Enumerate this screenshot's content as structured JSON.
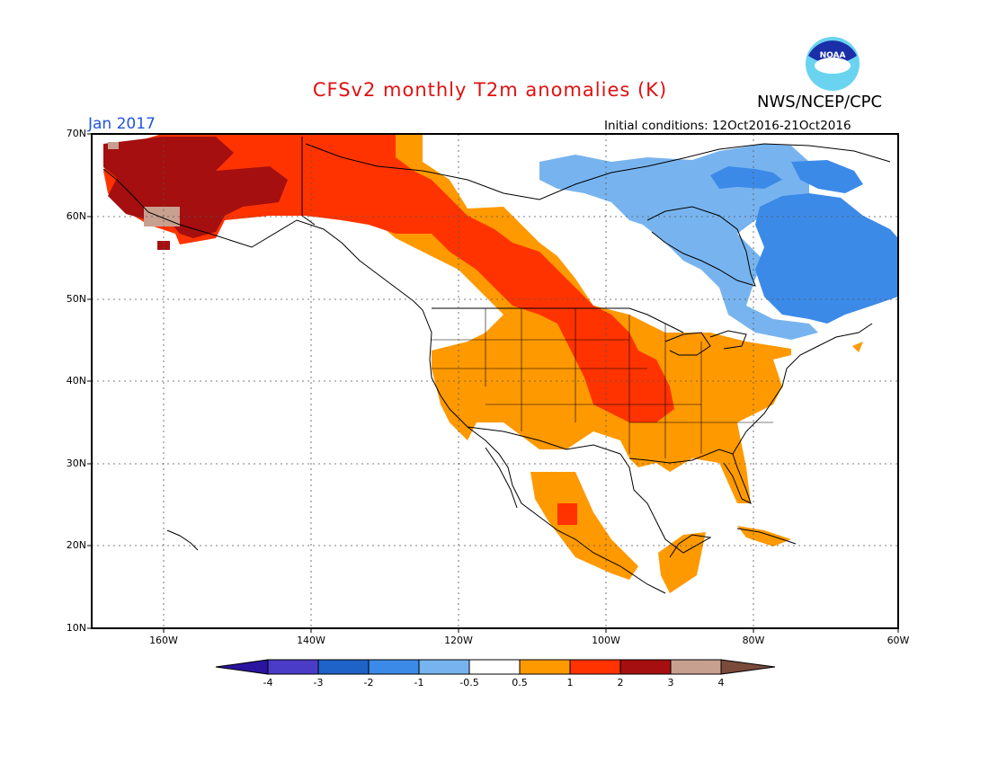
{
  "header": {
    "title": "CFSv2 monthly T2m anomalies (K)",
    "organization": "NWS/NCEP/CPC",
    "valid_month": "Jan 2017",
    "initial_conditions": "Initial conditions: 12Oct2016-21Oct2016",
    "logo_text": "NOAA"
  },
  "map": {
    "projection": "lat-lon",
    "lon_range": [
      -172,
      -60
    ],
    "lat_range": [
      10,
      70
    ],
    "lat_labels": [
      "70N",
      "60N",
      "50N",
      "40N",
      "30N",
      "20N",
      "10N"
    ],
    "lon_labels": [
      "160W",
      "140W",
      "120W",
      "100W",
      "80W",
      "60W"
    ],
    "regions": [
      {
        "name": "Alaska",
        "anomaly_class": "2 to 3",
        "color": "#a50f0f"
      },
      {
        "name": "Yukon / British Columbia",
        "anomaly_class": "1 to 2",
        "color": "#ff3300"
      },
      {
        "name": "Great Plains",
        "anomaly_class": "1 to 2",
        "color": "#ff3300"
      },
      {
        "name": "Western & Southern US",
        "anomaly_class": "0.5 to 1",
        "color": "#ff9900"
      },
      {
        "name": "Hudson Bay / Northeast Canada",
        "anomaly_class": "-1 to -0.5",
        "color": "#77b4ef"
      },
      {
        "name": "Quebec / Labrador",
        "anomaly_class": "-2 to -1",
        "color": "#3c8ae8"
      }
    ]
  },
  "colorbar": {
    "labels": [
      "-4",
      "-3",
      "-2",
      "-1",
      "-0.5",
      "0.5",
      "1",
      "2",
      "3",
      "4"
    ],
    "colors": [
      "#2a14a0",
      "#4b3cc8",
      "#1f62c8",
      "#3c8ae8",
      "#77b4ef",
      "#ffffff",
      "#ff9900",
      "#ff3300",
      "#a50f0f",
      "#c8a090",
      "#7a4a3a"
    ]
  }
}
